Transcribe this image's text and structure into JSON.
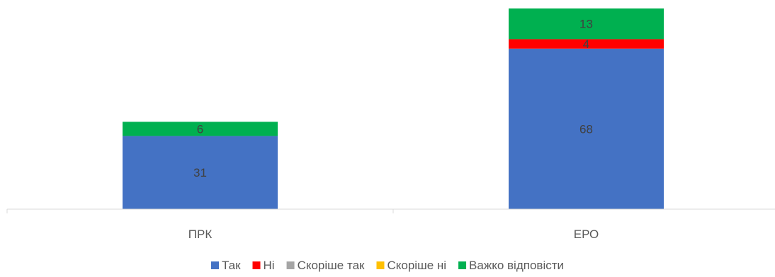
{
  "chart_data": {
    "type": "bar",
    "stacked": true,
    "categories": [
      "ПРК",
      "ЕРО"
    ],
    "series": [
      {
        "name": "Так",
        "values": [
          31,
          68
        ],
        "color": "#4472C4"
      },
      {
        "name": "Ні",
        "values": [
          0,
          4
        ],
        "color": "#FF0000"
      },
      {
        "name": "Скоріше так",
        "values": [
          0,
          0
        ],
        "color": "#A5A5A5"
      },
      {
        "name": "Скоріше ні",
        "values": [
          0,
          0
        ],
        "color": "#FFC000"
      },
      {
        "name": "Важко відповісти",
        "values": [
          6,
          13
        ],
        "color": "#00B050"
      }
    ],
    "ylim": [
      0,
      85
    ],
    "grid": false,
    "legend": "bottom"
  }
}
